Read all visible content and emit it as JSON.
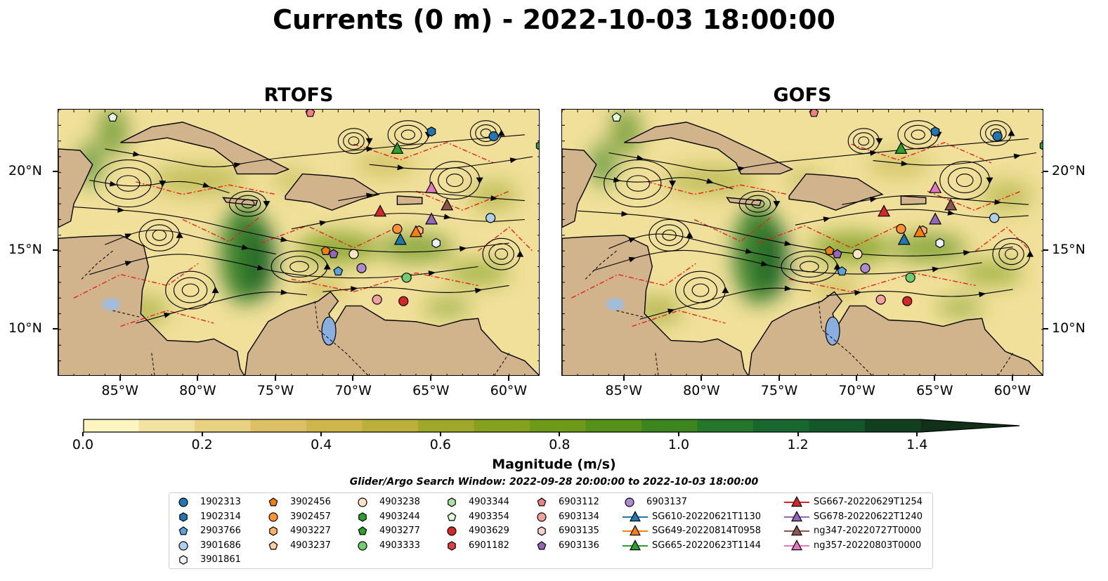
{
  "title": "Currents (0 m) - 2022-10-03 18:00:00",
  "panels": [
    {
      "name": "RTOFS"
    },
    {
      "name": "GOFS"
    }
  ],
  "lon_ticks": [
    "85°W",
    "80°W",
    "75°W",
    "70°W",
    "65°W",
    "60°W"
  ],
  "lat_ticks": [
    "20°N",
    "15°N",
    "10°N"
  ],
  "map_extent": {
    "lon": [
      -89,
      -58
    ],
    "lat": [
      7,
      24
    ]
  },
  "colorbar": {
    "label": "Magnitude (m/s)",
    "ticks": [
      "0.0",
      "0.2",
      "0.4",
      "0.6",
      "0.8",
      "1.0",
      "1.2",
      "1.4"
    ],
    "range": [
      0,
      1.6
    ],
    "extend": "max",
    "colors": [
      "#fdf5c0",
      "#f2e3a0",
      "#e8d282",
      "#dcc063",
      "#cfb64a",
      "#bbb03a",
      "#a0a82c",
      "#86a01f",
      "#6e9a1a",
      "#559018",
      "#3d861f",
      "#24772a",
      "#18672e",
      "#14572a",
      "#123f20",
      "#10301a"
    ]
  },
  "search_window": "Glider/Argo Search Window: 2022-09-28 20:00:00 to 2022-10-03 18:00:00",
  "legend": {
    "items": [
      {
        "label": "1902313",
        "marker": "circle",
        "color": "#1f77b4"
      },
      {
        "label": "1902314",
        "marker": "hexagon",
        "color": "#1f77b4"
      },
      {
        "label": "2903766",
        "marker": "pentagon",
        "color": "#5ba3dc"
      },
      {
        "label": "3901686",
        "marker": "circle",
        "color": "#aed0ee"
      },
      {
        "label": "3901861",
        "marker": "hexagon",
        "color": "#eaf3fb"
      },
      {
        "label": "3902456",
        "marker": "pentagon",
        "color": "#f07f10"
      },
      {
        "label": "3902457",
        "marker": "circle",
        "color": "#ff9333"
      },
      {
        "label": "4903227",
        "marker": "hexagon",
        "color": "#ffb06a"
      },
      {
        "label": "4903237",
        "marker": "pentagon",
        "color": "#ffd0a0"
      },
      {
        "label": "4903238",
        "marker": "circle",
        "color": "#ffe4c4"
      },
      {
        "label": "4903244",
        "marker": "hexagon",
        "color": "#2ca02c"
      },
      {
        "label": "4903277",
        "marker": "pentagon",
        "color": "#2ca02c"
      },
      {
        "label": "4903333",
        "marker": "circle",
        "color": "#6fcf6f"
      },
      {
        "label": "4903344",
        "marker": "hexagon",
        "color": "#a8e6a0"
      },
      {
        "label": "4903354",
        "marker": "pentagon",
        "color": "#e0fbd8"
      },
      {
        "label": "4903629",
        "marker": "circle",
        "color": "#d62728"
      },
      {
        "label": "6901182",
        "marker": "hexagon",
        "color": "#e04040"
      },
      {
        "label": "6903112",
        "marker": "pentagon",
        "color": "#f08080"
      },
      {
        "label": "6903134",
        "marker": "circle",
        "color": "#f4a0a0"
      },
      {
        "label": "6903135",
        "marker": "hexagon",
        "color": "#fcd0d0"
      },
      {
        "label": "6903136",
        "marker": "pentagon",
        "color": "#9467bd"
      },
      {
        "label": "6903137",
        "marker": "circle",
        "color": "#b08ad0"
      },
      {
        "label": "SG610-20220621T1130",
        "marker": "triangle",
        "color": "#1f77b4"
      },
      {
        "label": "SG649-20220814T0958",
        "marker": "triangle",
        "color": "#ff7f0e"
      },
      {
        "label": "SG665-20220623T1144",
        "marker": "triangle",
        "color": "#2ca02c"
      },
      {
        "label": "SG667-20220629T1254",
        "marker": "triangle",
        "color": "#d62728"
      },
      {
        "label": "SG678-20220622T1240",
        "marker": "triangle",
        "color": "#9467bd"
      },
      {
        "label": "ng347-20220727T0000",
        "marker": "triangle",
        "color": "#8c564b"
      },
      {
        "label": "ng357-20220803T0000",
        "marker": "triangle",
        "color": "#e377c2"
      }
    ]
  },
  "observations": [
    {
      "label": "1902313",
      "lon": -61.0,
      "lat": 22.3
    },
    {
      "label": "1902314",
      "lon": -65.0,
      "lat": 22.6
    },
    {
      "label": "2903766",
      "lon": -71.0,
      "lat": 13.7
    },
    {
      "label": "3901686",
      "lon": -61.2,
      "lat": 17.1
    },
    {
      "label": "3901861",
      "lon": -64.7,
      "lat": 15.5
    },
    {
      "label": "3902456",
      "lon": -71.8,
      "lat": 15.0
    },
    {
      "label": "3902457",
      "lon": -67.2,
      "lat": 16.4
    },
    {
      "label": "4903227",
      "lon": -65.8,
      "lat": 16.3
    },
    {
      "label": "4903238",
      "lon": -70.0,
      "lat": 14.8
    },
    {
      "label": "4903244",
      "lon": -58.0,
      "lat": 21.7
    },
    {
      "label": "4903333",
      "lon": -66.6,
      "lat": 13.3
    },
    {
      "label": "4903354",
      "lon": -85.5,
      "lat": 23.5
    },
    {
      "label": "4903629",
      "lon": -66.8,
      "lat": 11.8
    },
    {
      "label": "6903112",
      "lon": -72.8,
      "lat": 23.8
    },
    {
      "label": "6903134",
      "lon": -68.5,
      "lat": 11.9
    },
    {
      "label": "6903136",
      "lon": -71.3,
      "lat": 14.8
    },
    {
      "label": "6903137",
      "lon": -69.5,
      "lat": 13.9
    },
    {
      "label": "SG610-20220621T1130",
      "lon": -67.0,
      "lat": 15.7
    },
    {
      "label": "SG649-20220814T0958",
      "lon": -66.0,
      "lat": 16.2
    },
    {
      "label": "SG665-20220623T1144",
      "lon": -67.2,
      "lat": 21.5
    },
    {
      "label": "SG667-20220629T1254",
      "lon": -68.3,
      "lat": 17.5
    },
    {
      "label": "SG678-20220622T1240",
      "lon": -65.0,
      "lat": 17.0
    },
    {
      "label": "ng347-20220727T0000",
      "lon": -64.0,
      "lat": 17.9
    },
    {
      "label": "ng357-20220803T0000",
      "lon": -65.0,
      "lat": 19.0
    }
  ]
}
